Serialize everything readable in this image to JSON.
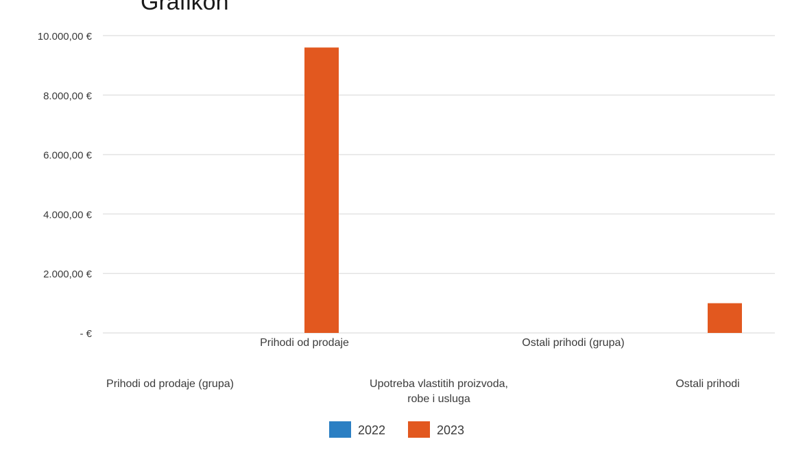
{
  "chart_data": {
    "type": "bar",
    "title": "Grafikon",
    "xlabel": "",
    "ylabel": "",
    "categories": [
      "Prihodi od prodaje (grupa)",
      "Prihodi od prodaje",
      "Upotreba vlastitih proizvoda, robe i usluga",
      "Ostali prihodi (grupa)",
      "Ostali prihodi"
    ],
    "category_lines": [
      [
        "Prihodi od prodaje (grupa)"
      ],
      [
        "Prihodi od prodaje"
      ],
      [
        "Upotreba vlastitih proizvoda,",
        "robe i usluga"
      ],
      [
        "Ostali prihodi (grupa)"
      ],
      [
        "Ostali prihodi"
      ]
    ],
    "series": [
      {
        "name": "2022",
        "color": "#2b7fc3",
        "values": [
          0,
          0,
          0,
          0,
          0
        ]
      },
      {
        "name": "2023",
        "color": "#e2581f",
        "values": [
          0,
          9600,
          0,
          0,
          1000
        ]
      }
    ],
    "yticks": [
      {
        "value": 10000,
        "label": "10.000,00 €"
      },
      {
        "value": 8000,
        "label": "8.000,00 €"
      },
      {
        "value": 6000,
        "label": "6.000,00 €"
      },
      {
        "value": 4000,
        "label": "4.000,00 €"
      },
      {
        "value": 2000,
        "label": "2.000,00 €"
      },
      {
        "value": 0,
        "label": "-   €"
      }
    ],
    "ylim": [
      0,
      10000
    ],
    "grid": true,
    "legend_position": "bottom"
  }
}
